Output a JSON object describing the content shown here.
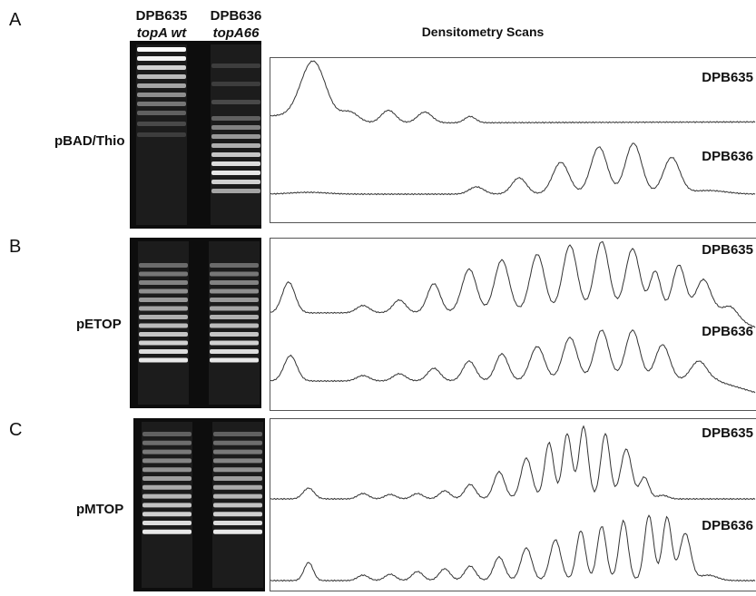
{
  "header": {
    "lanes": [
      {
        "strain": "DPB635",
        "genotype": "topA wt"
      },
      {
        "strain": "DPB636",
        "genotype": "topA66"
      }
    ],
    "scans_title": "Densitometry Scans"
  },
  "panels": [
    {
      "letter": "A",
      "plasmid": "pBAD/Thio",
      "traces": [
        "DPB635",
        "DPB636"
      ]
    },
    {
      "letter": "B",
      "plasmid": "pETOP",
      "traces": [
        "DPB635",
        "DPB636"
      ]
    },
    {
      "letter": "C",
      "plasmid": "pMTOP",
      "traces": [
        "DPB635",
        "DPB636"
      ]
    }
  ]
}
